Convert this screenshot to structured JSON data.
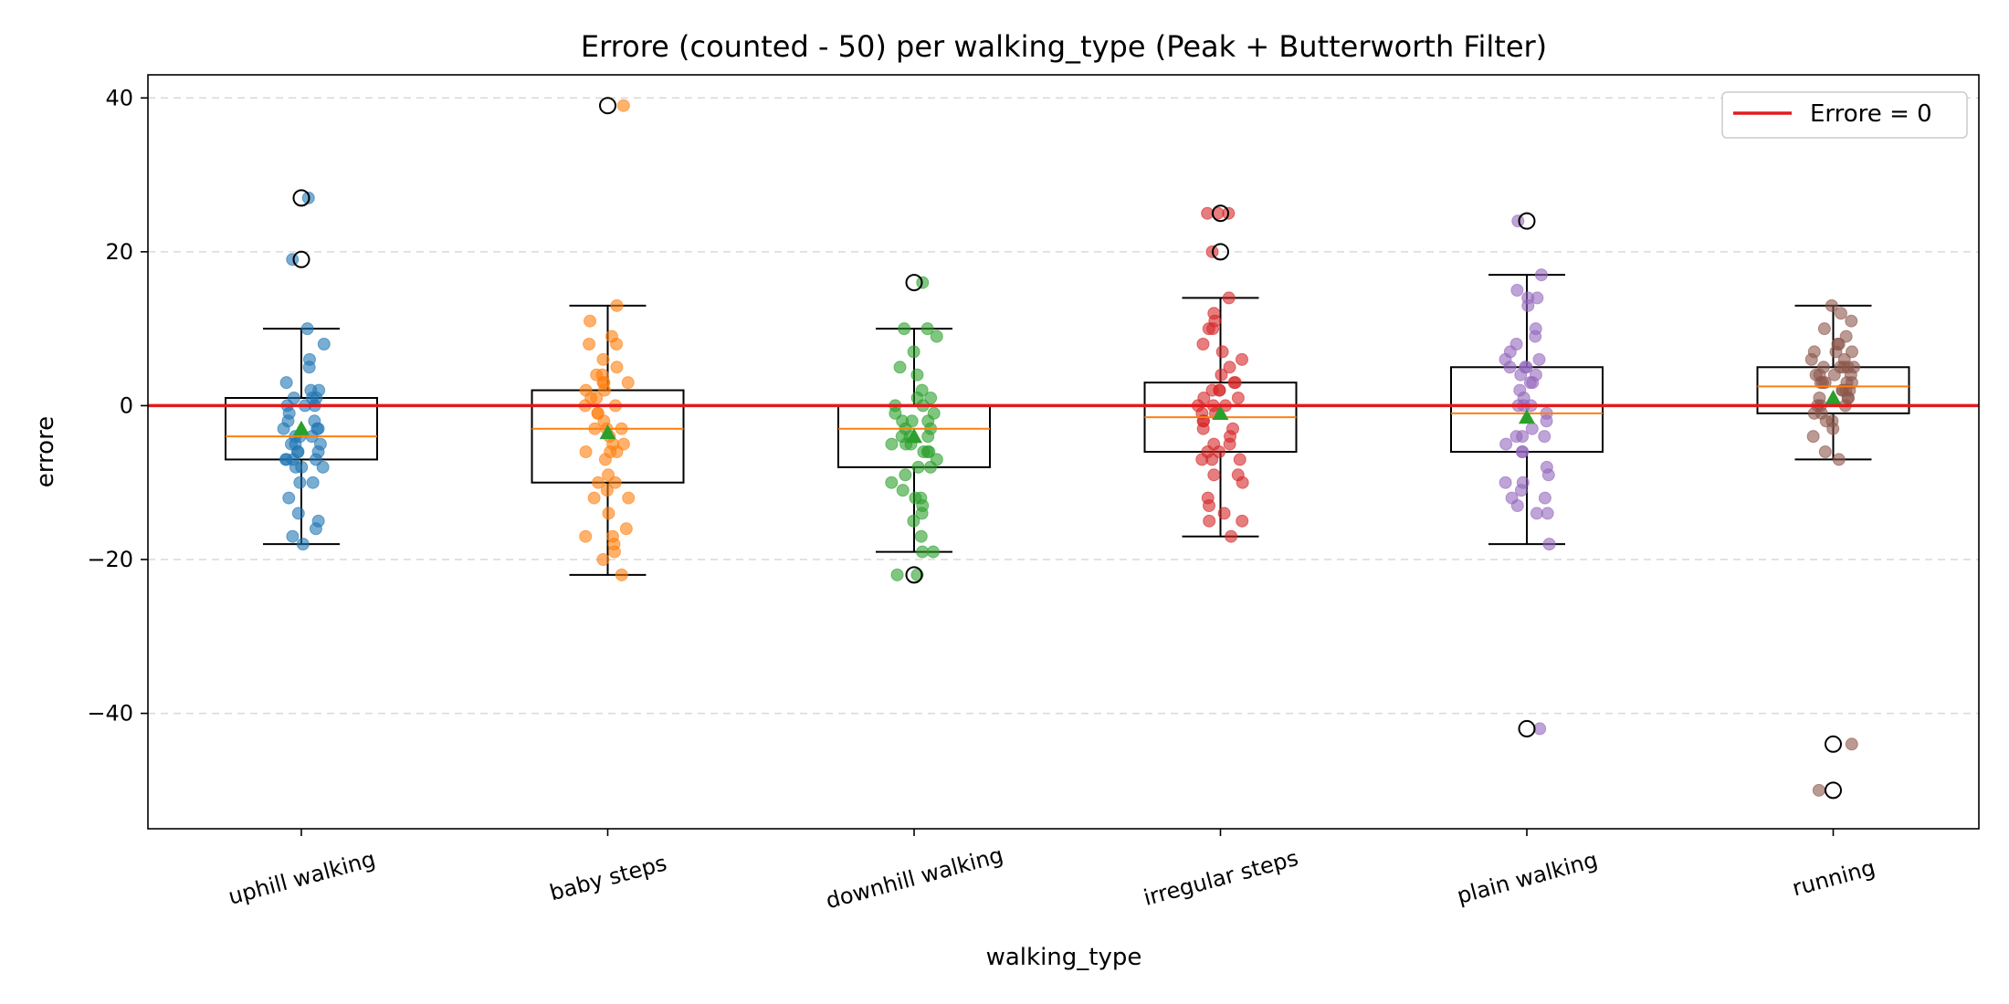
{
  "chart_data": {
    "type": "box",
    "title": "Errore (counted - 50) per walking_type (Peak + Butterworth Filter)",
    "xlabel": "walking_type",
    "ylabel": "errore",
    "ylim": [
      -55,
      43
    ],
    "yticks": [
      40,
      20,
      0,
      -20,
      -40
    ],
    "ytick_labels": [
      "40",
      "20",
      "0",
      "−20",
      "−40"
    ],
    "grid": "y dashed",
    "legend": {
      "placement": "top-right",
      "entries": [
        {
          "label": "Errore = 0",
          "color": "#e41a1c"
        }
      ]
    },
    "reference_line": {
      "y": 0,
      "color": "#e41a1c",
      "label": "Errore = 0"
    },
    "categories": [
      "uphill walking",
      "baby steps",
      "downhill walking",
      "irregular steps",
      "plain walking",
      "running"
    ],
    "colors": [
      "#1f77b4",
      "#ff7f0e",
      "#2ca02c",
      "#d62728",
      "#9467bd",
      "#8c564b"
    ],
    "boxes": [
      {
        "q1": -7,
        "median": -4,
        "q3": 1,
        "whisker_low": -18,
        "whisker_high": 10,
        "mean": -3,
        "outliers": [
          27,
          19
        ]
      },
      {
        "q1": -10,
        "median": -3,
        "q3": 2,
        "whisker_low": -22,
        "whisker_high": 13,
        "mean": -3.5,
        "outliers": [
          39
        ]
      },
      {
        "q1": -8,
        "median": -3,
        "q3": 0,
        "whisker_low": -19,
        "whisker_high": 10,
        "mean": -4,
        "outliers": [
          16,
          -22
        ]
      },
      {
        "q1": -6,
        "median": -1.5,
        "q3": 3,
        "whisker_low": -17,
        "whisker_high": 14,
        "mean": -1,
        "outliers": [
          25,
          20
        ]
      },
      {
        "q1": -6,
        "median": -1,
        "q3": 5,
        "whisker_low": -18,
        "whisker_high": 17,
        "mean": -1.5,
        "outliers": [
          24,
          -42
        ]
      },
      {
        "q1": -1,
        "median": 2.5,
        "q3": 5,
        "whisker_low": -7,
        "whisker_high": 13,
        "mean": 1,
        "outliers": [
          -44,
          -50
        ]
      }
    ],
    "points": [
      [
        27,
        19,
        10,
        8,
        6,
        5,
        3,
        2,
        2,
        1,
        1,
        1,
        0,
        0,
        0,
        -1,
        -2,
        -2,
        -3,
        -3,
        -3,
        -4,
        -4,
        -4,
        -5,
        -5,
        -5,
        -6,
        -6,
        -6,
        -7,
        -7,
        -7,
        -7,
        -8,
        -8,
        -8,
        -10,
        -10,
        -12,
        -14,
        -15,
        -16,
        -17,
        -18
      ],
      [
        39,
        13,
        11,
        9,
        8,
        8,
        6,
        5,
        4,
        4,
        3,
        3,
        3,
        2,
        2,
        1,
        1,
        0,
        0,
        -1,
        -1,
        -2,
        -3,
        -3,
        -3,
        -4,
        -5,
        -5,
        -6,
        -6,
        -6,
        -7,
        -9,
        -10,
        -10,
        -11,
        -12,
        -12,
        -14,
        -16,
        -17,
        -17,
        -18,
        -19,
        -20,
        -22
      ],
      [
        16,
        10,
        10,
        9,
        7,
        5,
        4,
        2,
        1,
        1,
        0,
        0,
        -1,
        -1,
        -2,
        -2,
        -2,
        -3,
        -3,
        -4,
        -4,
        -4,
        -5,
        -5,
        -5,
        -6,
        -6,
        -6,
        -7,
        -8,
        -8,
        -9,
        -10,
        -11,
        -12,
        -12,
        -13,
        -14,
        -15,
        -17,
        -19,
        -19,
        -22,
        -22
      ],
      [
        25,
        25,
        25,
        20,
        14,
        12,
        11,
        10,
        10,
        8,
        7,
        6,
        5,
        4,
        3,
        3,
        2,
        2,
        2,
        1,
        1,
        0,
        0,
        0,
        -1,
        -1,
        -2,
        -2,
        -3,
        -3,
        -4,
        -5,
        -5,
        -6,
        -6,
        -7,
        -7,
        -7,
        -9,
        -9,
        -10,
        -12,
        -13,
        -14,
        -15,
        -15,
        -17
      ],
      [
        24,
        17,
        15,
        14,
        14,
        13,
        10,
        9,
        8,
        7,
        6,
        6,
        5,
        5,
        5,
        4,
        4,
        3,
        3,
        2,
        1,
        0,
        0,
        0,
        -1,
        -2,
        -3,
        -4,
        -4,
        -4,
        -5,
        -6,
        -6,
        -8,
        -9,
        -10,
        -10,
        -11,
        -12,
        -12,
        -13,
        -14,
        -14,
        -18,
        -42
      ],
      [
        13,
        12,
        11,
        10,
        9,
        8,
        8,
        7,
        7,
        7,
        6,
        6,
        5,
        5,
        5,
        5,
        5,
        4,
        4,
        4,
        4,
        3,
        3,
        3,
        3,
        3,
        2,
        2,
        2,
        2,
        1,
        1,
        1,
        0,
        0,
        0,
        -1,
        -1,
        -2,
        -2,
        -3,
        -4,
        -6,
        -7,
        -44,
        -50
      ]
    ]
  }
}
